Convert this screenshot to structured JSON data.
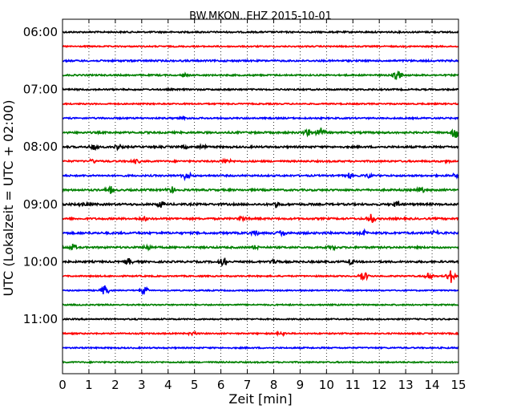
{
  "chart_data": {
    "type": "line",
    "title": "BW.MKON..EHZ 2015-10-01",
    "xlabel": "Zeit  [min]",
    "ylabel": "UTC (Lokalzeit = UTC + 02:00)",
    "xlim": [
      0,
      15
    ],
    "x_ticks": [
      "0",
      "1",
      "2",
      "3",
      "4",
      "5",
      "6",
      "7",
      "8",
      "9",
      "10",
      "11",
      "12",
      "13",
      "14",
      "15"
    ],
    "y_tick_labels": [
      "06:00",
      "07:00",
      "08:00",
      "09:00",
      "10:00",
      "11:00"
    ],
    "traces_per_hour": 4,
    "trace_minutes": 15,
    "grid": "vertical dotted",
    "colors": [
      "#000000",
      "#ff0000",
      "#0000ff",
      "#008000"
    ],
    "series": [
      {
        "start": "06:00",
        "color": "#000000",
        "noise": 0.9,
        "events": []
      },
      {
        "start": "06:15",
        "color": "#ff0000",
        "noise": 0.8,
        "events": []
      },
      {
        "start": "06:30",
        "color": "#0000ff",
        "noise": 1.0,
        "events": []
      },
      {
        "start": "06:45",
        "color": "#008000",
        "noise": 0.9,
        "events": [
          [
            4.6,
            2.5
          ],
          [
            12.7,
            7
          ]
        ]
      },
      {
        "start": "07:00",
        "color": "#000000",
        "noise": 0.9,
        "events": []
      },
      {
        "start": "07:15",
        "color": "#ff0000",
        "noise": 0.8,
        "events": []
      },
      {
        "start": "07:30",
        "color": "#0000ff",
        "noise": 0.9,
        "events": [
          [
            4.6,
            2
          ]
        ]
      },
      {
        "start": "07:45",
        "color": "#008000",
        "noise": 1.1,
        "events": [
          [
            9.3,
            5
          ],
          [
            9.8,
            7
          ],
          [
            14.9,
            8
          ]
        ]
      },
      {
        "start": "08:00",
        "color": "#000000",
        "noise": 1.1,
        "events": [
          [
            1.2,
            4
          ],
          [
            2.1,
            4
          ],
          [
            4.6,
            3
          ],
          [
            5.3,
            3
          ]
        ]
      },
      {
        "start": "08:15",
        "color": "#ff0000",
        "noise": 1.0,
        "events": [
          [
            1.1,
            3
          ],
          [
            2.8,
            3
          ],
          [
            6.2,
            3
          ],
          [
            14.6,
            3
          ]
        ]
      },
      {
        "start": "08:30",
        "color": "#0000ff",
        "noise": 1.0,
        "events": [
          [
            4.7,
            6
          ],
          [
            10.9,
            4
          ],
          [
            11.6,
            3
          ],
          [
            14.9,
            3
          ]
        ]
      },
      {
        "start": "08:45",
        "color": "#008000",
        "noise": 1.1,
        "events": [
          [
            1.8,
            5
          ],
          [
            4.1,
            5
          ],
          [
            13.6,
            4
          ]
        ]
      },
      {
        "start": "09:00",
        "color": "#000000",
        "noise": 1.2,
        "events": [
          [
            0.8,
            5
          ],
          [
            3.7,
            4
          ],
          [
            8.1,
            4
          ],
          [
            12.7,
            5
          ]
        ]
      },
      {
        "start": "09:15",
        "color": "#ff0000",
        "noise": 1.1,
        "events": [
          [
            3.1,
            4
          ],
          [
            11.7,
            6
          ],
          [
            6.8,
            3
          ]
        ]
      },
      {
        "start": "09:30",
        "color": "#0000ff",
        "noise": 1.2,
        "events": [
          [
            7.3,
            4
          ],
          [
            8.3,
            4
          ],
          [
            11.4,
            4
          ],
          [
            14.1,
            3
          ]
        ]
      },
      {
        "start": "09:45",
        "color": "#008000",
        "noise": 1.1,
        "events": [
          [
            0.4,
            4
          ],
          [
            3.2,
            4
          ],
          [
            7.3,
            3
          ],
          [
            10.2,
            3
          ]
        ]
      },
      {
        "start": "10:00",
        "color": "#000000",
        "noise": 1.1,
        "events": [
          [
            2.5,
            4
          ],
          [
            6.1,
            6
          ],
          [
            8.0,
            4
          ],
          [
            10.9,
            4
          ]
        ]
      },
      {
        "start": "10:15",
        "color": "#ff0000",
        "noise": 0.8,
        "events": [
          [
            11.4,
            7
          ],
          [
            13.9,
            5
          ],
          [
            14.7,
            9
          ]
        ]
      },
      {
        "start": "10:30",
        "color": "#0000ff",
        "noise": 0.7,
        "events": [
          [
            1.6,
            7
          ],
          [
            3.1,
            5
          ]
        ]
      },
      {
        "start": "10:45",
        "color": "#008000",
        "noise": 0.8,
        "events": []
      },
      {
        "start": "11:00",
        "color": "#000000",
        "noise": 0.8,
        "events": []
      },
      {
        "start": "11:15",
        "color": "#ff0000",
        "noise": 0.8,
        "events": [
          [
            4.9,
            2.5
          ],
          [
            8.3,
            2.5
          ]
        ]
      },
      {
        "start": "11:30",
        "color": "#0000ff",
        "noise": 0.8,
        "events": []
      },
      {
        "start": "11:45",
        "color": "#008000",
        "noise": 0.8,
        "events": []
      }
    ]
  }
}
